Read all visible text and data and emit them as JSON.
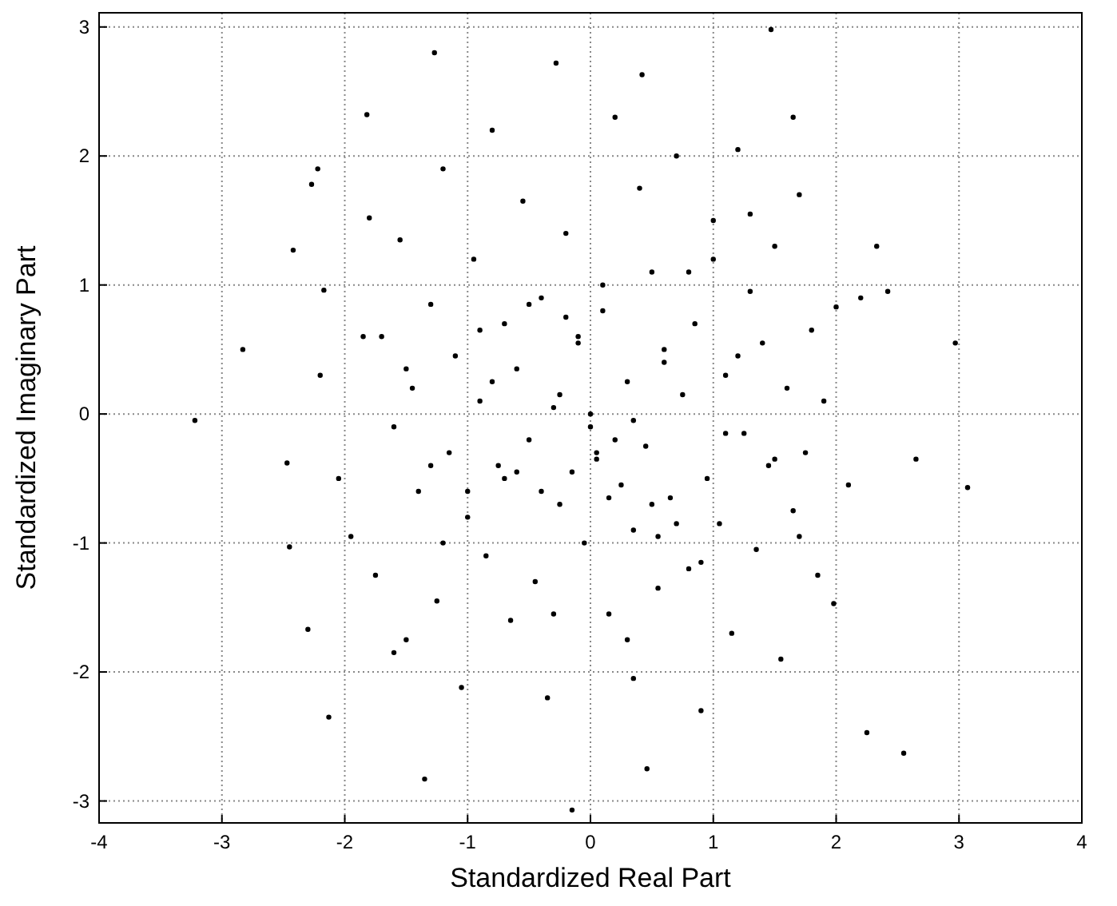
{
  "chart_data": {
    "type": "scatter",
    "xlabel": "Standardized Real Part",
    "ylabel": "Standardized Imaginary Part",
    "xlim": [
      -4,
      4
    ],
    "ylim": [
      -3.17,
      3.11
    ],
    "xticks": [
      -4,
      -3,
      -2,
      -1,
      0,
      1,
      2,
      3,
      4
    ],
    "yticks": [
      -3,
      -2,
      -1,
      0,
      1,
      2,
      3
    ],
    "grid": true,
    "marker": "circle",
    "series": [
      {
        "color": "#000000",
        "x": [
          -3.22,
          -2.83,
          -2.47,
          -2.45,
          -2.42,
          -2.3,
          -2.13,
          -2.17,
          -2.22,
          -1.35,
          0.46,
          -0.15,
          1.47,
          -1.27,
          -0.28,
          0.42,
          3.07,
          2.97,
          2.55,
          2.25,
          2.65,
          2.42,
          2.33,
          1.98,
          2.0,
          1.65,
          -1.82,
          -2.27,
          -2.05,
          -2.2,
          -1.95,
          -1.8,
          -1.75,
          -1.7,
          -1.6,
          -1.55,
          -1.5,
          -1.45,
          -1.4,
          -1.3,
          -1.25,
          -1.2,
          -1.15,
          -1.1,
          -1.05,
          -1.0,
          -0.95,
          -0.9,
          -0.85,
          -0.8,
          -0.75,
          -0.7,
          -0.65,
          -0.6,
          -0.55,
          -0.5,
          -0.45,
          -0.4,
          -0.35,
          -0.3,
          -0.25,
          -0.2,
          -0.15,
          -0.1,
          -0.05,
          0.0,
          0.05,
          0.1,
          0.15,
          0.2,
          0.25,
          0.3,
          0.35,
          0.4,
          0.45,
          0.5,
          0.55,
          0.6,
          0.65,
          0.7,
          0.75,
          0.8,
          0.85,
          0.9,
          0.95,
          1.0,
          1.05,
          1.1,
          1.15,
          1.2,
          1.25,
          1.3,
          1.35,
          1.4,
          1.45,
          1.5,
          1.55,
          1.6,
          1.65,
          1.7,
          1.75,
          1.8,
          1.85,
          1.9,
          2.1,
          2.2,
          -1.85,
          -1.6,
          -1.2,
          -0.9,
          -0.6,
          -0.3,
          0.1,
          0.35,
          0.6,
          0.9,
          1.3,
          1.7,
          -1.5,
          -1.0,
          -0.5,
          0.0,
          0.5,
          1.0,
          1.5,
          -0.7,
          -0.2,
          0.3,
          0.8,
          1.2,
          -0.4,
          0.2,
          0.7,
          -1.3,
          1.1,
          -0.8,
          0.55,
          0.05,
          -0.1,
          0.15,
          0.35,
          -0.25
        ],
        "values": [
          -0.05,
          0.5,
          -0.38,
          -1.03,
          1.27,
          -1.67,
          -2.35,
          0.96,
          1.9,
          -2.83,
          -2.75,
          -3.07,
          2.98,
          2.8,
          2.72,
          2.63,
          -0.57,
          0.55,
          -2.63,
          -2.47,
          -0.35,
          0.95,
          1.3,
          -1.47,
          0.83,
          2.3,
          2.32,
          1.78,
          -0.5,
          0.3,
          -0.95,
          1.52,
          -1.25,
          0.6,
          -0.1,
          1.35,
          -1.75,
          0.2,
          -0.6,
          0.85,
          -1.45,
          1.9,
          -0.3,
          0.45,
          -2.12,
          -0.8,
          1.2,
          0.1,
          -1.1,
          2.2,
          -0.4,
          0.7,
          -1.6,
          0.35,
          1.65,
          -0.2,
          -1.3,
          0.9,
          -2.2,
          0.05,
          -0.7,
          1.4,
          -0.45,
          0.6,
          -1.0,
          0.0,
          -0.35,
          0.8,
          -1.55,
          2.3,
          -0.55,
          0.25,
          -0.9,
          1.75,
          -0.25,
          1.1,
          -1.35,
          0.4,
          -0.65,
          2.0,
          0.15,
          -1.2,
          0.7,
          -2.3,
          -0.5,
          1.5,
          -0.85,
          0.3,
          -1.7,
          2.05,
          -0.15,
          0.95,
          -1.05,
          0.55,
          -0.4,
          1.3,
          -1.9,
          0.2,
          -0.75,
          1.7,
          -0.3,
          0.65,
          -1.25,
          0.1,
          -0.55,
          0.9,
          0.6,
          -1.85,
          -1.0,
          0.65,
          -0.45,
          -1.55,
          1.0,
          -2.05,
          0.5,
          -1.15,
          1.55,
          -0.95,
          0.35,
          -0.6,
          0.85,
          -0.1,
          -0.7,
          1.2,
          -0.35,
          -0.5,
          0.75,
          -1.75,
          1.1,
          0.45,
          -0.6,
          -0.2,
          -0.85,
          -0.4,
          -0.15,
          0.25,
          -0.95,
          -0.3,
          0.55,
          -0.65,
          -0.05,
          0.15
        ]
      }
    ]
  }
}
